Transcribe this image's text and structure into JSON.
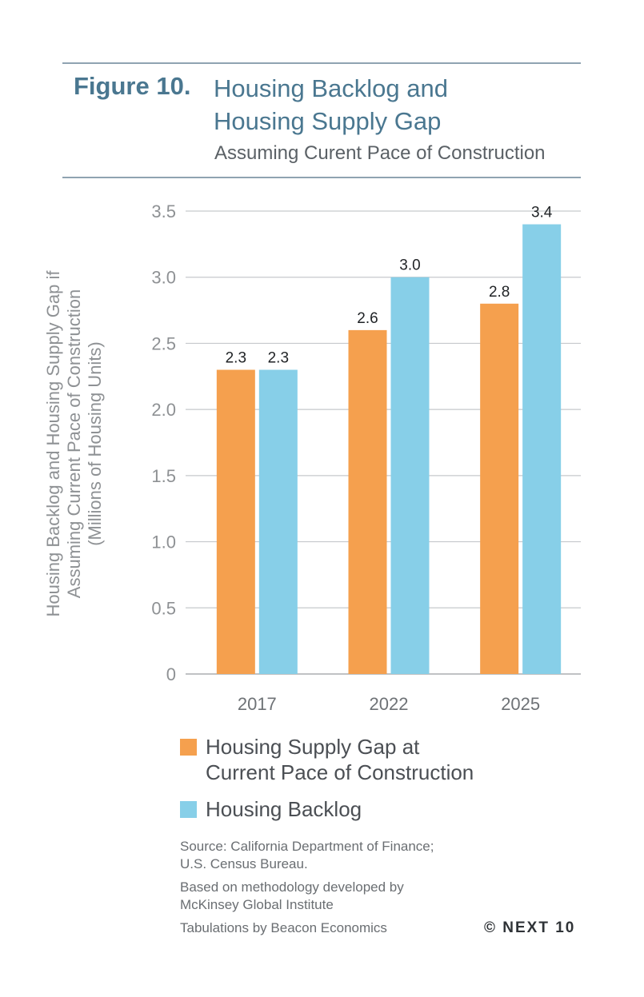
{
  "header": {
    "figure_label": "Figure 10.",
    "title_lines": [
      "Housing Backlog and",
      "Housing Supply Gap"
    ],
    "subtitle": "Assuming Curent Pace of Construction"
  },
  "chart_data": {
    "type": "bar",
    "categories": [
      "2017",
      "2022",
      "2025"
    ],
    "series": [
      {
        "name": "Housing Supply Gap at Current Pace of Construction",
        "values": [
          2.3,
          2.6,
          2.8
        ],
        "color": "#f5a04e"
      },
      {
        "name": "Housing Backlog",
        "values": [
          2.3,
          3.0,
          3.4
        ],
        "color": "#87cfe8"
      }
    ],
    "data_labels": [
      [
        "2.3",
        "2.6",
        "2.8"
      ],
      [
        "2.3",
        "3.0",
        "3.4"
      ]
    ],
    "ylabel_lines": [
      "Housing Backlog and Housing Supply Gap if",
      "Assuming Current Pace of Construction",
      "(Millions of Housing Units)"
    ],
    "ylim": [
      0,
      3.5
    ],
    "yticks": [
      0,
      0.5,
      1.0,
      1.5,
      2.0,
      2.5,
      3.0,
      3.5
    ],
    "ytick_labels": [
      "0",
      "0.5",
      "1.0",
      "1.5",
      "2.0",
      "2.5",
      "3.0",
      "3.5"
    ],
    "grid": true,
    "legend_position": "bottom"
  },
  "legend": {
    "supply_gap_lines": [
      "Housing Supply Gap at",
      "Current Pace of Construction"
    ],
    "backlog": "Housing Backlog"
  },
  "notes": {
    "source_lines": [
      "Source: California Department of Finance;",
      "U.S. Census Bureau."
    ],
    "methodology_lines": [
      "Based on methodology developed by",
      "McKinsey Global Institute"
    ],
    "tabulations": "Tabulations by Beacon Economics"
  },
  "copyright": "© NEXT 10",
  "colors": {
    "accent": "#4a7790",
    "rule": "#8fa3b1",
    "grid": "#c6c9cc",
    "axis_text": "#8e9194"
  }
}
